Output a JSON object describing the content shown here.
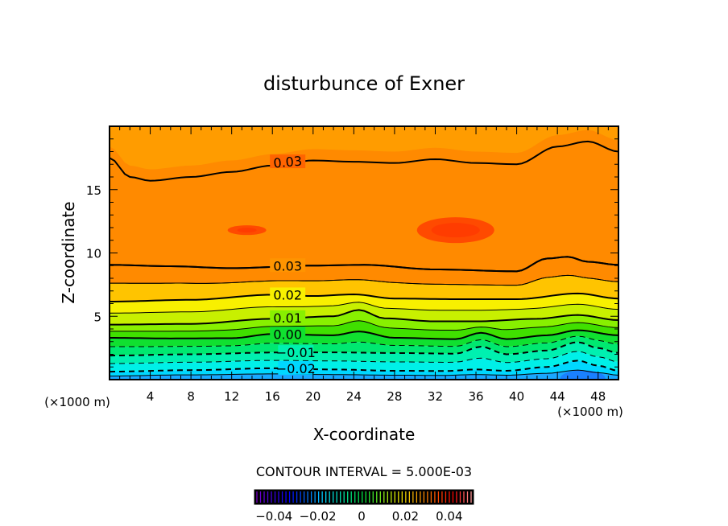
{
  "chart_data": {
    "type": "contour",
    "title": "disturbunce of Exner",
    "xlabel": "X-coordinate",
    "ylabel": "Z-coordinate",
    "x_unit_label": "(×1000 m)",
    "y_unit_label": "(×1000 m)",
    "xlim": [
      0,
      50
    ],
    "ylim": [
      0,
      20
    ],
    "xticks": [
      4,
      8,
      12,
      16,
      20,
      24,
      28,
      32,
      36,
      40,
      44,
      48
    ],
    "yticks": [
      5,
      10,
      15
    ],
    "contour_interval_label": "CONTOUR INTERVAL = 5.000E-03",
    "contour_interval": 0.005,
    "contours": [
      {
        "level": -0.02,
        "label": "-0.02",
        "label_at": [
          18.3,
          0.9
        ],
        "dashed": true,
        "points": [
          [
            0,
            0.63
          ],
          [
            8,
            0.75
          ],
          [
            16,
            0.9
          ],
          [
            22,
            0.8
          ],
          [
            28,
            0.7
          ],
          [
            33,
            0.68
          ],
          [
            36,
            0.8
          ],
          [
            39,
            0.7
          ],
          [
            43,
            1.0
          ],
          [
            46,
            1.5
          ],
          [
            48,
            1.1
          ],
          [
            50,
            0.7
          ]
        ]
      },
      {
        "level": -0.01,
        "label": "-0.01",
        "label_at": [
          18.3,
          2.15
        ],
        "dashed": true,
        "points": [
          [
            0,
            1.9
          ],
          [
            8,
            2.0
          ],
          [
            16,
            2.14
          ],
          [
            22,
            2.15
          ],
          [
            28,
            2.1
          ],
          [
            34,
            2.05
          ],
          [
            36.5,
            2.6
          ],
          [
            39,
            2.0
          ],
          [
            43,
            2.3
          ],
          [
            46,
            2.96
          ],
          [
            48,
            2.5
          ],
          [
            50,
            2.1
          ]
        ]
      },
      {
        "level": 0.0,
        "label": "0.00",
        "label_at": [
          17.5,
          3.6
        ],
        "dashed": false,
        "points": [
          [
            0,
            3.3
          ],
          [
            6,
            3.25
          ],
          [
            12,
            3.27
          ],
          [
            16,
            3.6
          ],
          [
            22,
            3.5
          ],
          [
            24.5,
            3.8
          ],
          [
            28,
            3.3
          ],
          [
            34,
            3.2
          ],
          [
            36.5,
            3.7
          ],
          [
            39,
            3.2
          ],
          [
            43,
            3.5
          ],
          [
            46,
            3.9
          ],
          [
            50,
            3.5
          ]
        ]
      },
      {
        "level": 0.01,
        "label": "0.01",
        "label_at": [
          17.5,
          4.9
        ],
        "dashed": false,
        "points": [
          [
            0,
            4.34
          ],
          [
            8,
            4.4
          ],
          [
            16,
            4.8
          ],
          [
            22,
            5.0
          ],
          [
            24.5,
            5.5
          ],
          [
            27,
            4.84
          ],
          [
            32,
            4.6
          ],
          [
            36,
            4.6
          ],
          [
            42,
            4.8
          ],
          [
            46,
            5.1
          ],
          [
            50,
            4.7
          ]
        ]
      },
      {
        "level": 0.02,
        "label": "0.02",
        "label_at": [
          17.5,
          6.7
        ],
        "dashed": false,
        "points": [
          [
            0,
            6.16
          ],
          [
            8,
            6.3
          ],
          [
            16,
            6.7
          ],
          [
            20,
            6.6
          ],
          [
            24,
            6.73
          ],
          [
            28,
            6.4
          ],
          [
            34,
            6.35
          ],
          [
            40,
            6.35
          ],
          [
            46,
            6.8
          ],
          [
            50,
            6.4
          ]
        ]
      },
      {
        "level": 0.03,
        "label": "0.03",
        "label_at": [
          17.5,
          9.0
        ],
        "dashed": false,
        "points": [
          [
            0,
            9.06
          ],
          [
            6,
            8.95
          ],
          [
            12,
            8.8
          ],
          [
            20,
            9.0
          ],
          [
            25,
            9.06
          ],
          [
            32,
            8.7
          ],
          [
            40,
            8.55
          ],
          [
            43,
            9.56
          ],
          [
            45,
            9.7
          ],
          [
            47,
            9.3
          ],
          [
            50,
            9.06
          ]
        ]
      },
      {
        "level": 0.03,
        "label": "0.03",
        "label_at": [
          17.5,
          17.2
        ],
        "dashed": false,
        "points": [
          [
            0,
            17.5
          ],
          [
            2,
            16.0
          ],
          [
            4,
            15.7
          ],
          [
            8,
            16.0
          ],
          [
            12,
            16.4
          ],
          [
            16,
            16.9
          ],
          [
            20,
            17.3
          ],
          [
            24,
            17.2
          ],
          [
            28,
            17.1
          ],
          [
            32,
            17.4
          ],
          [
            36,
            17.1
          ],
          [
            40,
            17.0
          ],
          [
            44,
            18.4
          ],
          [
            47,
            18.8
          ],
          [
            50,
            18.0
          ]
        ]
      }
    ],
    "maxima_regions": [
      {
        "x": 13.5,
        "z": 11.8,
        "value_range": ">0.035"
      },
      {
        "x": 34,
        "z": 11.8,
        "value_range": ">0.035"
      }
    ],
    "colorbar": {
      "min": -0.05,
      "max": 0.05,
      "ticks": [
        -0.04,
        -0.02,
        0,
        0.02,
        0.04
      ],
      "tick_labels": [
        "−0.04",
        "−0.02",
        "0",
        "0.02",
        "0.04"
      ]
    },
    "colors": {
      "band_colors": [
        "#1aa8ff",
        "#00d8ff",
        "#00f0e8",
        "#00f0b0",
        "#00e870",
        "#10e030",
        "#40e000",
        "#88f000",
        "#c8f000",
        "#f8f000",
        "#ffc400",
        "#ff9400",
        "#ff5e00",
        "#ff8a00"
      ],
      "max_color": "#ff3c00"
    }
  }
}
